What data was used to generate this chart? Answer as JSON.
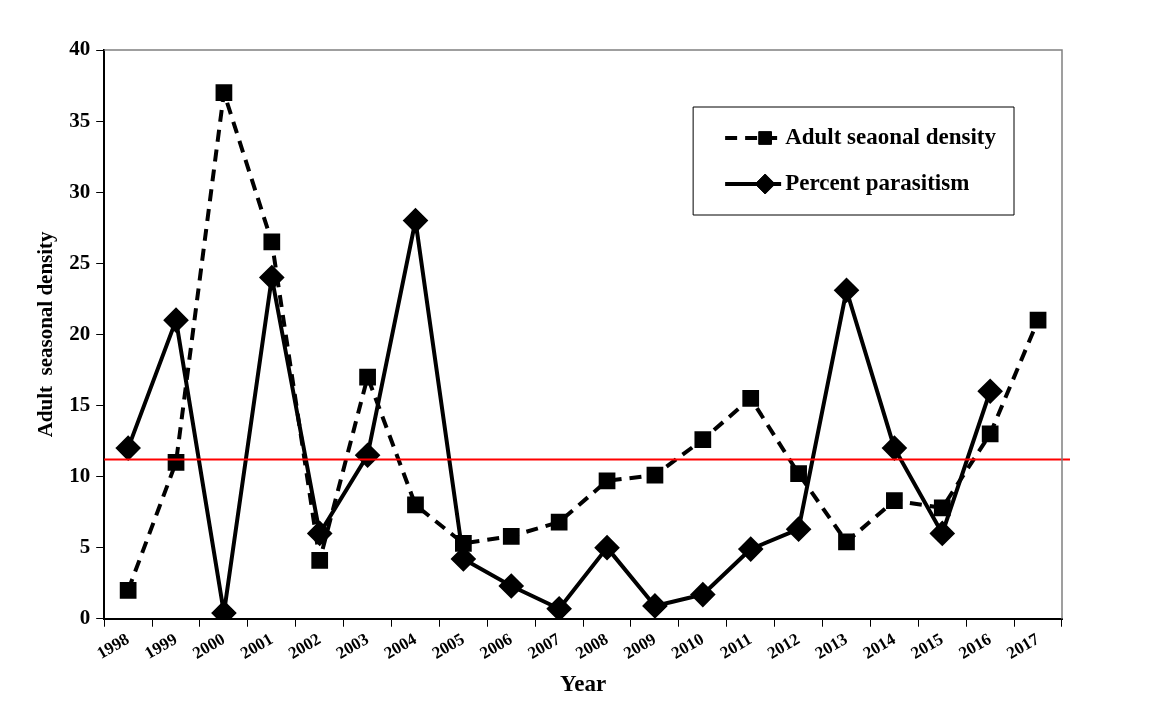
{
  "chart_data": {
    "type": "line",
    "xlabel": "Year",
    "ylabel": "Adult  seasonal density",
    "categories": [
      "1998",
      "1999",
      "2000",
      "2001",
      "2002",
      "2003",
      "2004",
      "2005",
      "2006",
      "2007",
      "2008",
      "2009",
      "2010",
      "2011",
      "2012",
      "2013",
      "2014",
      "2015",
      "2016",
      "2017"
    ],
    "series": [
      {
        "name": "Adult seaonal density",
        "color": "#000000",
        "marker": "square",
        "line_style": "dashed",
        "values": [
          2,
          11,
          37,
          26.5,
          4.1,
          17,
          8,
          5.3,
          5.8,
          6.8,
          9.7,
          10.1,
          12.6,
          15.5,
          10.2,
          5.4,
          8.3,
          7.8,
          13,
          21
        ]
      },
      {
        "name": "Percent parasitism",
        "color": "#000000",
        "marker": "diamond",
        "line_style": "solid",
        "values": [
          12,
          21,
          0.4,
          24,
          6,
          11.5,
          28,
          4.2,
          2.3,
          0.7,
          5,
          0.9,
          1.7,
          4.9,
          6.3,
          23.1,
          12,
          6,
          16,
          null
        ]
      }
    ],
    "ylim": [
      0,
      40
    ],
    "yticks": [
      0,
      5,
      10,
      15,
      20,
      25,
      30,
      35,
      40
    ],
    "grid": false,
    "legend": "top right",
    "ref_lines": [
      {
        "axis": "y",
        "value": 11.2,
        "color": "#ff0000"
      }
    ]
  }
}
